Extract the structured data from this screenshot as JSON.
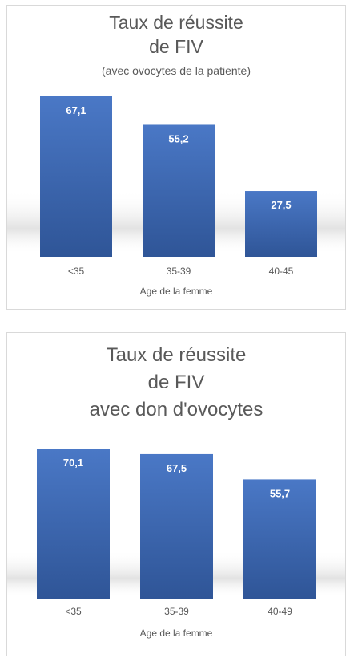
{
  "chart_data": [
    {
      "type": "bar",
      "title": "Taux de réussite",
      "title_line2": "de FIV",
      "subtitle": "(avec ovocytes de la patiente)",
      "xlabel": "Age de la femme",
      "ylabel": "",
      "categories": [
        "<35",
        "35-39",
        "40-45"
      ],
      "values": [
        67.1,
        55.2,
        27.5
      ],
      "value_labels": [
        "67,1",
        "55,2",
        "27,5"
      ],
      "ylim": [
        0,
        67.1
      ],
      "grid": false,
      "legend": "none"
    },
    {
      "type": "bar",
      "title": "Taux de réussite",
      "title_line2": "de FIV",
      "title_line3": "avec don d'ovocytes",
      "xlabel": "Age de la femme",
      "ylabel": "",
      "categories": [
        "<35",
        "35-39",
        "40-49"
      ],
      "values": [
        70.1,
        67.5,
        55.7
      ],
      "value_labels": [
        "70,1",
        "67,5",
        "55,7"
      ],
      "ylim": [
        0,
        70.1
      ],
      "grid": false,
      "legend": "none"
    }
  ],
  "colors": {
    "bar_top": "#4a78c6",
    "bar_bottom": "#2f5597",
    "label_text": "#ffffff",
    "axis_text": "#595959"
  }
}
